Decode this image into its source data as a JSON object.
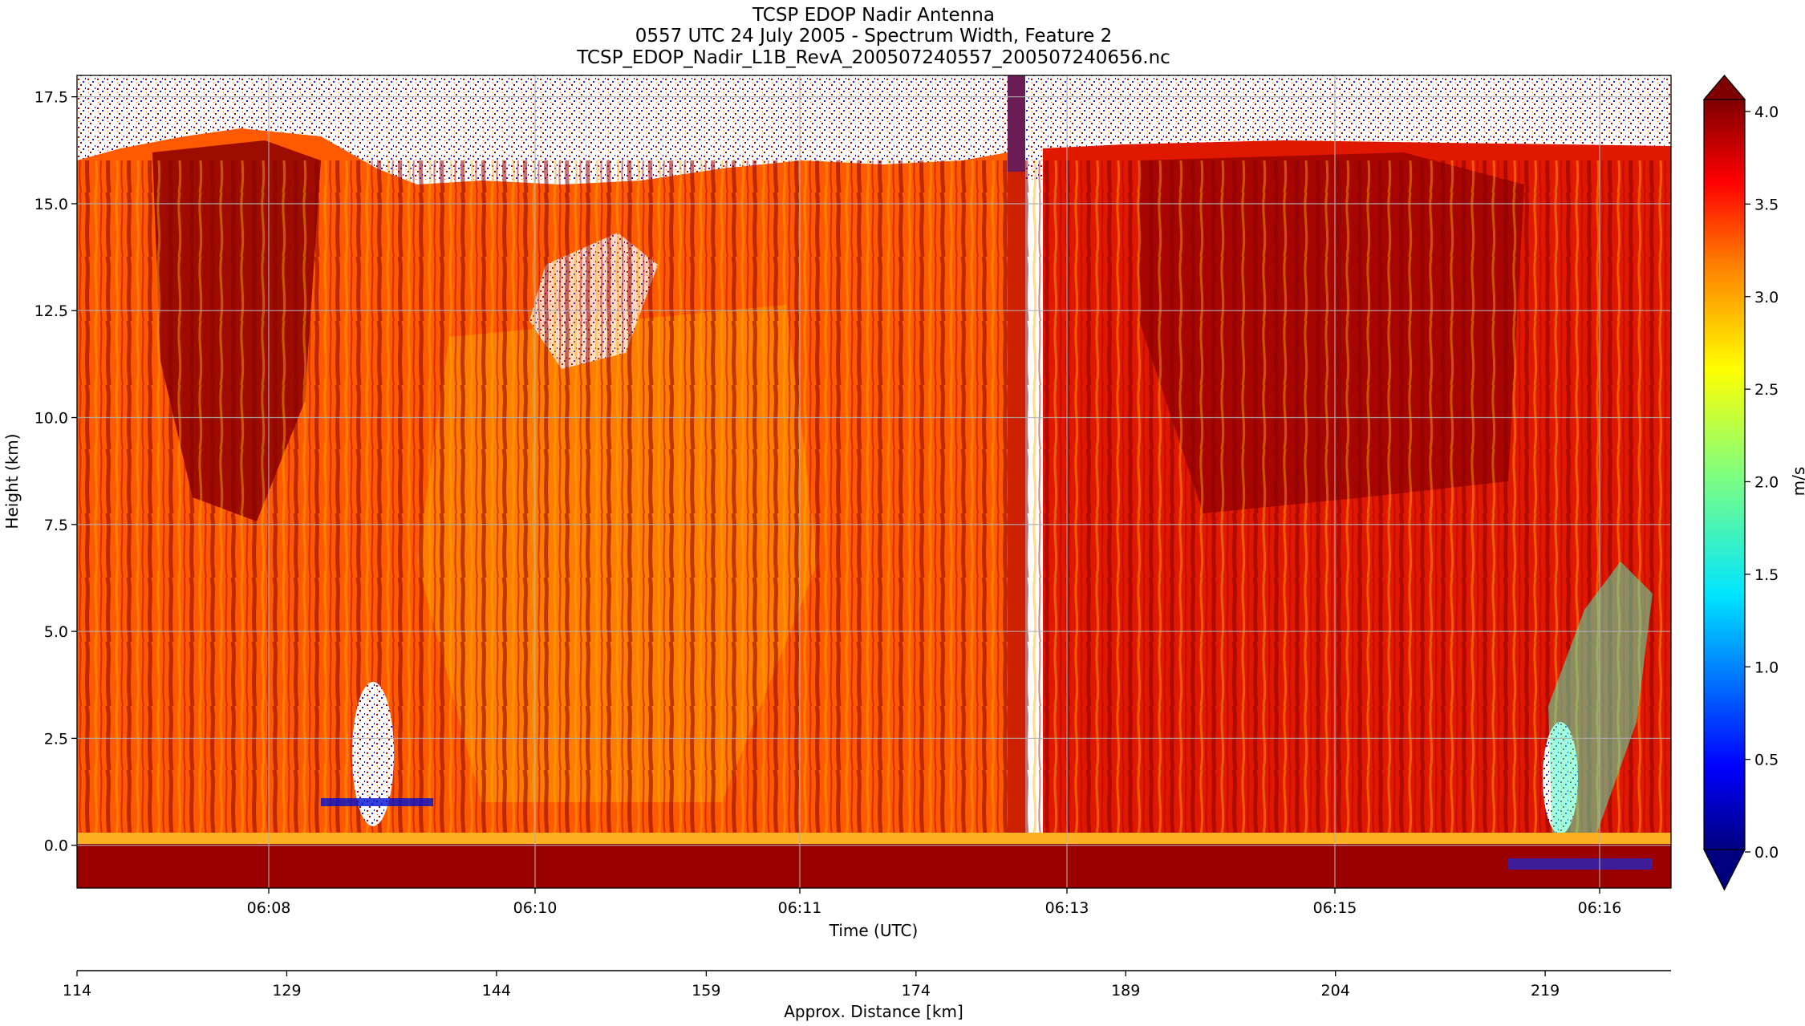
{
  "chart_data": {
    "type": "heatmap",
    "title_lines": [
      "TCSP EDOP Nadir Antenna",
      "0557 UTC 24 July 2005 - Spectrum Width, Feature 2",
      "TCSP_EDOP_Nadir_L1B_RevA_200507240557_200507240656.nc"
    ],
    "xlabel": "Time (UTC)",
    "ylabel": "Height (km)",
    "x_ticks": [
      "06:08",
      "06:10",
      "06:11",
      "06:13",
      "06:15",
      "06:16"
    ],
    "y_ticks": [
      "17.5",
      "15.0",
      "12.5",
      "10.0",
      "7.5",
      "5.0",
      "2.5",
      "0.0"
    ],
    "ylim": [
      -1.0,
      18.0
    ],
    "grid": true,
    "distance_axis": {
      "label": "Approx. Distance [km]",
      "ticks": [
        "114",
        "129",
        "144",
        "159",
        "174",
        "189",
        "204",
        "219"
      ],
      "range": [
        114,
        228
      ]
    },
    "colorbar": {
      "label": "m/s",
      "colormap": "jet",
      "range": [
        0.0,
        4.0
      ],
      "ticks": [
        "0.0",
        "0.5",
        "1.0",
        "1.5",
        "2.0",
        "2.5",
        "3.0",
        "3.5",
        "4.0"
      ],
      "extend": "both"
    }
  },
  "colors": {
    "background_noise": "#ffffff",
    "jet_stops": [
      "#00007f",
      "#0000ff",
      "#007fff",
      "#00ffff",
      "#7fff7f",
      "#ffff00",
      "#ff7f00",
      "#ff0000",
      "#7f0000"
    ]
  }
}
